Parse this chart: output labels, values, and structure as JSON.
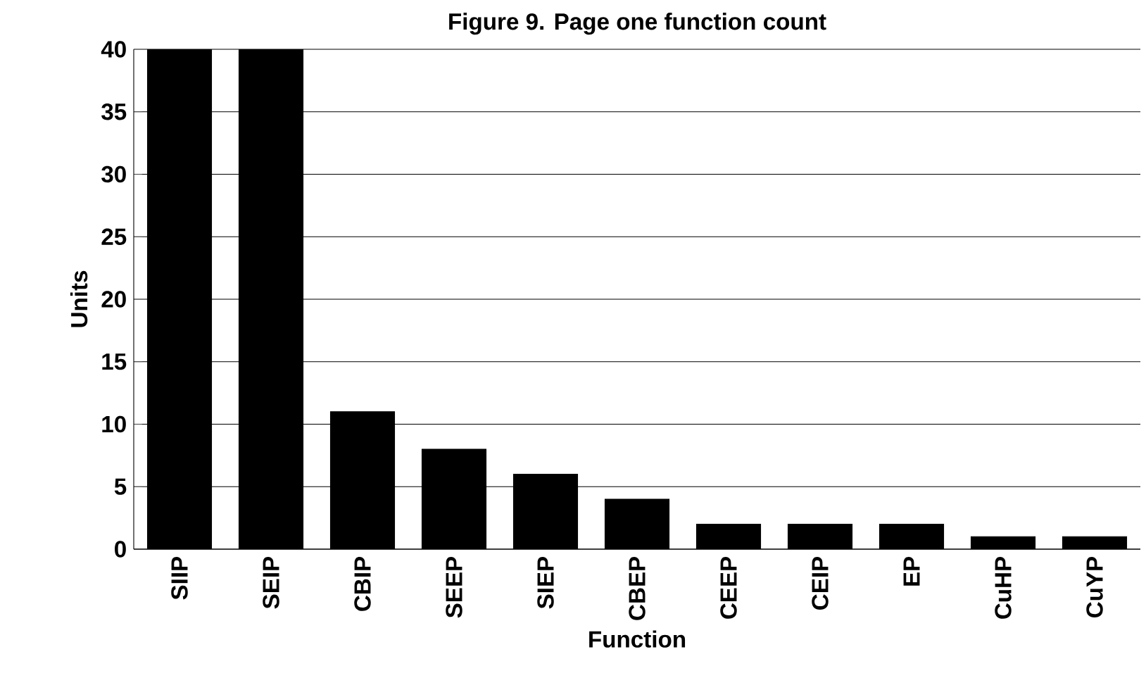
{
  "chart_data": {
    "type": "bar",
    "title": "Figure 9. Page one function count",
    "xlabel": "Function",
    "ylabel": "Units",
    "categories": [
      "SIIP",
      "SEIP",
      "CBIP",
      "SEEP",
      "SIEP",
      "CBEP",
      "CEEP",
      "CEIP",
      "EP",
      "CuHP",
      "CuYP"
    ],
    "values": [
      40,
      40,
      11,
      8,
      6,
      4,
      2,
      2,
      2,
      1,
      1
    ],
    "color": "#000000",
    "ylim": [
      0,
      40
    ],
    "yticks": [
      0,
      5,
      10,
      15,
      20,
      25,
      30,
      35,
      40
    ],
    "grid": "y"
  }
}
